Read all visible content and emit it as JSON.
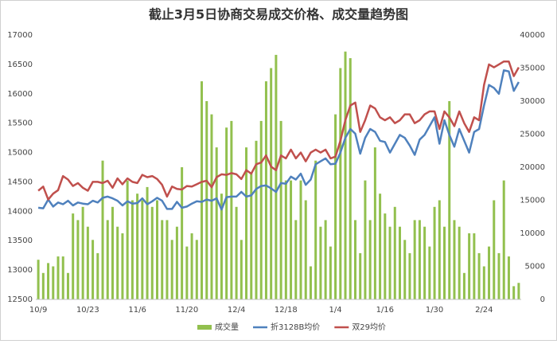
{
  "chart_data": {
    "type": "bar_line",
    "title": "截止3月5日协商交易成交价格、成交量趋势图",
    "categories": [
      "10/9",
      null,
      null,
      null,
      null,
      null,
      null,
      null,
      null,
      null,
      "10/23",
      null,
      null,
      null,
      null,
      null,
      null,
      null,
      null,
      null,
      "11/6",
      null,
      null,
      null,
      null,
      null,
      null,
      null,
      null,
      null,
      "11/20",
      null,
      null,
      null,
      null,
      null,
      null,
      null,
      null,
      null,
      "12/4",
      null,
      null,
      null,
      null,
      null,
      null,
      null,
      null,
      null,
      "12/18",
      null,
      null,
      null,
      null,
      null,
      null,
      null,
      null,
      null,
      "1/4",
      null,
      null,
      null,
      null,
      null,
      null,
      null,
      null,
      null,
      "1/16",
      null,
      null,
      null,
      null,
      null,
      null,
      null,
      null,
      null,
      "1/30",
      null,
      null,
      null,
      null,
      null,
      null,
      null,
      null,
      null,
      "2/24",
      null,
      null,
      null,
      null,
      null,
      null,
      null
    ],
    "series": [
      {
        "name": "成交量",
        "color": "#92c04e",
        "kind": "bar",
        "axis": "y2",
        "values": [
          6000,
          4000,
          5500,
          5000,
          6500,
          6500,
          4000,
          13000,
          12000,
          14000,
          11000,
          9000,
          7000,
          21000,
          12000,
          14000,
          11000,
          10000,
          18000,
          15000,
          16000,
          15000,
          17000,
          14000,
          15000,
          12000,
          12000,
          9000,
          11000,
          20000,
          8000,
          10000,
          9000,
          33000,
          30000,
          28000,
          23000,
          16000,
          26000,
          27000,
          14000,
          9000,
          23000,
          19000,
          24000,
          27000,
          33000,
          35000,
          37000,
          27000,
          18000,
          18000,
          12000,
          18000,
          15000,
          5000,
          21000,
          11000,
          12000,
          8000,
          28000,
          35000,
          37500,
          36500,
          12000,
          7000,
          18000,
          12000,
          23000,
          16000,
          13000,
          11000,
          14000,
          11000,
          9000,
          7000,
          12000,
          12000,
          11000,
          8000,
          14000,
          15000,
          11000,
          30000,
          12000,
          11000,
          4000,
          10000,
          10000,
          7000,
          5000,
          8000,
          15000,
          7000,
          18000,
          6500,
          2000,
          2500
        ]
      },
      {
        "name": "折3128B均价",
        "color": "#4f81bd",
        "kind": "line",
        "values": [
          14060,
          14050,
          14200,
          14080,
          14150,
          14120,
          14180,
          14100,
          14150,
          14130,
          14120,
          14180,
          14150,
          14230,
          14250,
          14220,
          14180,
          14100,
          14170,
          14130,
          14140,
          14220,
          14120,
          14170,
          14230,
          14180,
          14040,
          14040,
          14160,
          14060,
          14080,
          14130,
          14170,
          14160,
          14200,
          14180,
          14220,
          14030,
          14240,
          14250,
          14250,
          14330,
          14250,
          14270,
          14380,
          14430,
          14440,
          14390,
          14330,
          14480,
          14470,
          14590,
          14540,
          14640,
          14450,
          14540,
          14800,
          14850,
          14900,
          14800,
          14810,
          15000,
          15250,
          15400,
          15320,
          14980,
          15250,
          15400,
          15350,
          15200,
          15180,
          15000,
          15150,
          15300,
          15250,
          15120,
          14960,
          15220,
          15300,
          15450,
          15600,
          15150,
          15550,
          15300,
          15100,
          15400,
          15200,
          15000,
          15350,
          15400,
          15800,
          16150,
          16100,
          16000,
          16400,
          16380,
          16050,
          16200
        ]
      },
      {
        "name": "双29均价",
        "color": "#c0504d",
        "kind": "line",
        "values": [
          14350,
          14420,
          14200,
          14300,
          14360,
          14600,
          14540,
          14430,
          14480,
          14400,
          14350,
          14500,
          14500,
          14480,
          14520,
          14400,
          14560,
          14460,
          14560,
          14500,
          14480,
          14620,
          14580,
          14600,
          14550,
          14450,
          14250,
          14420,
          14380,
          14370,
          14430,
          14420,
          14460,
          14500,
          14520,
          14410,
          14580,
          14630,
          14620,
          14650,
          14630,
          14550,
          14700,
          14640,
          14800,
          14830,
          14950,
          14760,
          14700,
          14950,
          14900,
          15050,
          14900,
          15000,
          14850,
          15000,
          15050,
          15000,
          15050,
          14900,
          14930,
          15200,
          15550,
          15800,
          15850,
          15350,
          15550,
          15800,
          15750,
          15600,
          15550,
          15600,
          15500,
          15550,
          15650,
          15650,
          15500,
          15550,
          15650,
          15700,
          15700,
          15400,
          15700,
          15600,
          15450,
          15700,
          15500,
          15350,
          15600,
          15550,
          16150,
          16500,
          16450,
          16500,
          16550,
          16550,
          16300,
          16450
        ]
      }
    ],
    "ylim": [
      12500,
      17000
    ],
    "yticks": [
      12500,
      13000,
      13500,
      14000,
      14500,
      15000,
      15500,
      16000,
      16500,
      17000
    ],
    "y2lim": [
      0,
      40000
    ],
    "y2ticks": [
      0,
      5000,
      10000,
      15000,
      20000,
      25000,
      30000,
      35000,
      40000
    ],
    "grid": false,
    "legend": "bottom"
  }
}
